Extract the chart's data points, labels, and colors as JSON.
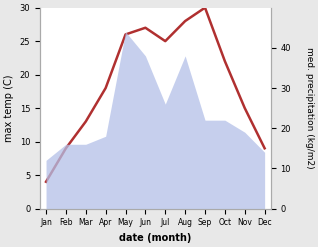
{
  "months": [
    "Jan",
    "Feb",
    "Mar",
    "Apr",
    "May",
    "Jun",
    "Jul",
    "Aug",
    "Sep",
    "Oct",
    "Nov",
    "Dec"
  ],
  "month_positions": [
    0,
    1,
    2,
    3,
    4,
    5,
    6,
    7,
    8,
    9,
    10,
    11
  ],
  "temperature": [
    4,
    9,
    13,
    18,
    26,
    27,
    25,
    28,
    30,
    22,
    15,
    9
  ],
  "precipitation": [
    12,
    16,
    16,
    18,
    44,
    38,
    26,
    38,
    22,
    22,
    19,
    14
  ],
  "temp_color": "#b03030",
  "precip_fill_color": "#b3c0e8",
  "precip_fill_alpha": 0.75,
  "temp_ylim": [
    0,
    30
  ],
  "temp_yticks": [
    0,
    5,
    10,
    15,
    20,
    25,
    30
  ],
  "precip_ylim": [
    0,
    50
  ],
  "precip_yticks": [
    0,
    10,
    20,
    30,
    40
  ],
  "xlabel": "date (month)",
  "ylabel_left": "max temp (C)",
  "ylabel_right": "med. precipitation (kg/m2)",
  "bg_color": "#e8e8e8",
  "plot_bg_color": "#ffffff",
  "line_width": 1.8
}
